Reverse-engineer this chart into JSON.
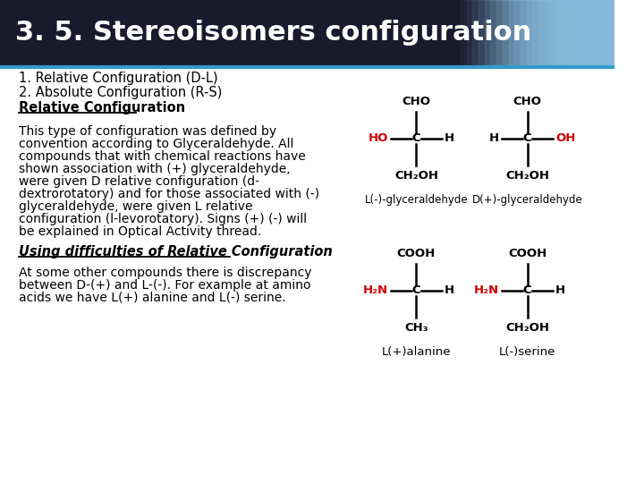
{
  "title": "3. 5. Stereoisomers configuration",
  "title_bg": "#1a1a2e",
  "title_color": "#ffffff",
  "title_fontsize": 22,
  "title_bar_height": 0.135,
  "blue_line_color": "#3399cc",
  "content_bg": "#ffffff",
  "body_fontsize": 10.5,
  "body_color": "#000000",
  "line1": "1. Relative Configuration (D-L)",
  "line2": "2. Absolute Configuration (R-S)",
  "line3_bold": "Relative Configuration",
  "paragraph1": "This type of configuration was defined by\nconvention according to Glyceraldehyde. All\ncompounds that with chemical reactions have\nshown association with (+) glyceraldehyde,\nwere given D relative configuration (d-\ndextrorotatory) and for those associated with (-)\nglyceraldehyde, were given L relative\nconfiguration (l-levorotatory). Signs (+) (-) will\nbe explained in Optical Activity thread.",
  "para2_bold": "Using difficulties of Relative Configuration",
  "paragraph2": "At some other compounds there is discrepancy\nbetween D-(+) and L-(-). For example at amino\nacids we have L(+) alanine and L(-) serine.",
  "label_glyceral_L": "L(-)-glyceraldehyde",
  "label_glyceral_D": "D(+)-glyceraldehyde",
  "label_alanine": "L(+)alanine",
  "label_serine": "L(-)serine",
  "red_color": "#cc0000",
  "black_color": "#000000"
}
